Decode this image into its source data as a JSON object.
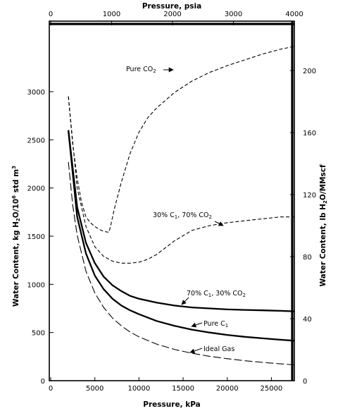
{
  "chart_data": {
    "type": "line",
    "title": "",
    "xlabel": "Pressure, kPa",
    "x2label": "Pressure, psia",
    "ylabel": "Water Content, kg H2O/10^6 std m^3",
    "y2label": "Water Content, lb H2O/MMscf",
    "xlim": [
      0,
      27600
    ],
    "ylim": [
      0,
      3200
    ],
    "x2lim": [
      0,
      4000
    ],
    "y2lim": [
      0,
      200
    ],
    "xticks": [
      "0",
      "5000",
      "10000",
      "15000",
      "20000",
      "25000"
    ],
    "yticks": [
      "0",
      "500",
      "1000",
      "1500",
      "2000",
      "2500",
      "3000"
    ],
    "x2ticks": [
      "0",
      "1000",
      "2000",
      "3000",
      "4000"
    ],
    "y2ticks": [
      "0",
      "40",
      "80",
      "120",
      "160",
      "200"
    ],
    "grid": false,
    "legend": "none",
    "series": [
      {
        "name": "Pure CO2",
        "style": "dashed",
        "x": [
          2000,
          2500,
          3000,
          3500,
          4000,
          4500,
          5000,
          5500,
          6000,
          6600,
          6800,
          7200,
          8000,
          9000,
          10000,
          11000,
          12000,
          14000,
          16000,
          18000,
          20000,
          22000,
          24000,
          26000,
          27600
        ],
        "y": [
          2950,
          2450,
          2100,
          1850,
          1700,
          1640,
          1600,
          1570,
          1550,
          1540,
          1610,
          1780,
          2060,
          2360,
          2580,
          2730,
          2830,
          2990,
          3110,
          3200,
          3270,
          3330,
          3390,
          3440,
          3470
        ]
      },
      {
        "name": "30% C1, 70% CO2",
        "style": "dashed",
        "x": [
          2000,
          3000,
          4000,
          5000,
          6000,
          7000,
          8000,
          9000,
          10000,
          11000,
          12000,
          13000,
          14000,
          16000,
          18000,
          20000,
          22000,
          24000,
          26000,
          27600
        ],
        "y": [
          2950,
          2000,
          1600,
          1390,
          1290,
          1240,
          1220,
          1220,
          1230,
          1260,
          1310,
          1380,
          1450,
          1560,
          1610,
          1640,
          1660,
          1680,
          1700,
          1700
        ]
      },
      {
        "name": "70% C1, 30% CO2",
        "style": "solid",
        "x": [
          2000,
          3000,
          4000,
          5000,
          6000,
          7000,
          8000,
          9000,
          10000,
          12000,
          14000,
          16000,
          18000,
          20000,
          22000,
          24000,
          26000,
          27600
        ],
        "y": [
          2600,
          1800,
          1430,
          1220,
          1080,
          990,
          930,
          880,
          850,
          810,
          780,
          760,
          750,
          740,
          735,
          730,
          725,
          720
        ]
      },
      {
        "name": "Pure C1",
        "style": "solid",
        "x": [
          2000,
          3000,
          4000,
          5000,
          6000,
          7000,
          8000,
          9000,
          10000,
          12000,
          14000,
          16000,
          18000,
          20000,
          22000,
          24000,
          26000,
          27600
        ],
        "y": [
          2600,
          1700,
          1320,
          1090,
          950,
          850,
          780,
          730,
          690,
          620,
          570,
          530,
          500,
          475,
          455,
          440,
          425,
          415
        ]
      },
      {
        "name": "Ideal Gas",
        "style": "longdash",
        "x": [
          2000,
          2500,
          3000,
          4000,
          5000,
          6000,
          7000,
          8000,
          9000,
          10000,
          12000,
          14000,
          16000,
          18000,
          20000,
          22000,
          24000,
          26000,
          27600
        ],
        "y": [
          2270,
          1820,
          1510,
          1135,
          910,
          760,
          650,
          570,
          505,
          455,
          380,
          325,
          285,
          253,
          228,
          207,
          190,
          175,
          165
        ]
      }
    ],
    "annotations": [
      {
        "text": "Pure CO2",
        "target": "Pure CO2"
      },
      {
        "text": "30% C1, 70% CO2",
        "target": "30% C1, 70% CO2"
      },
      {
        "text": "70% C1, 30% CO2",
        "target": "70% C1, 30% CO2"
      },
      {
        "text": "Pure C1",
        "target": "Pure C1"
      },
      {
        "text": "Ideal Gas",
        "target": "Ideal Gas"
      }
    ]
  }
}
